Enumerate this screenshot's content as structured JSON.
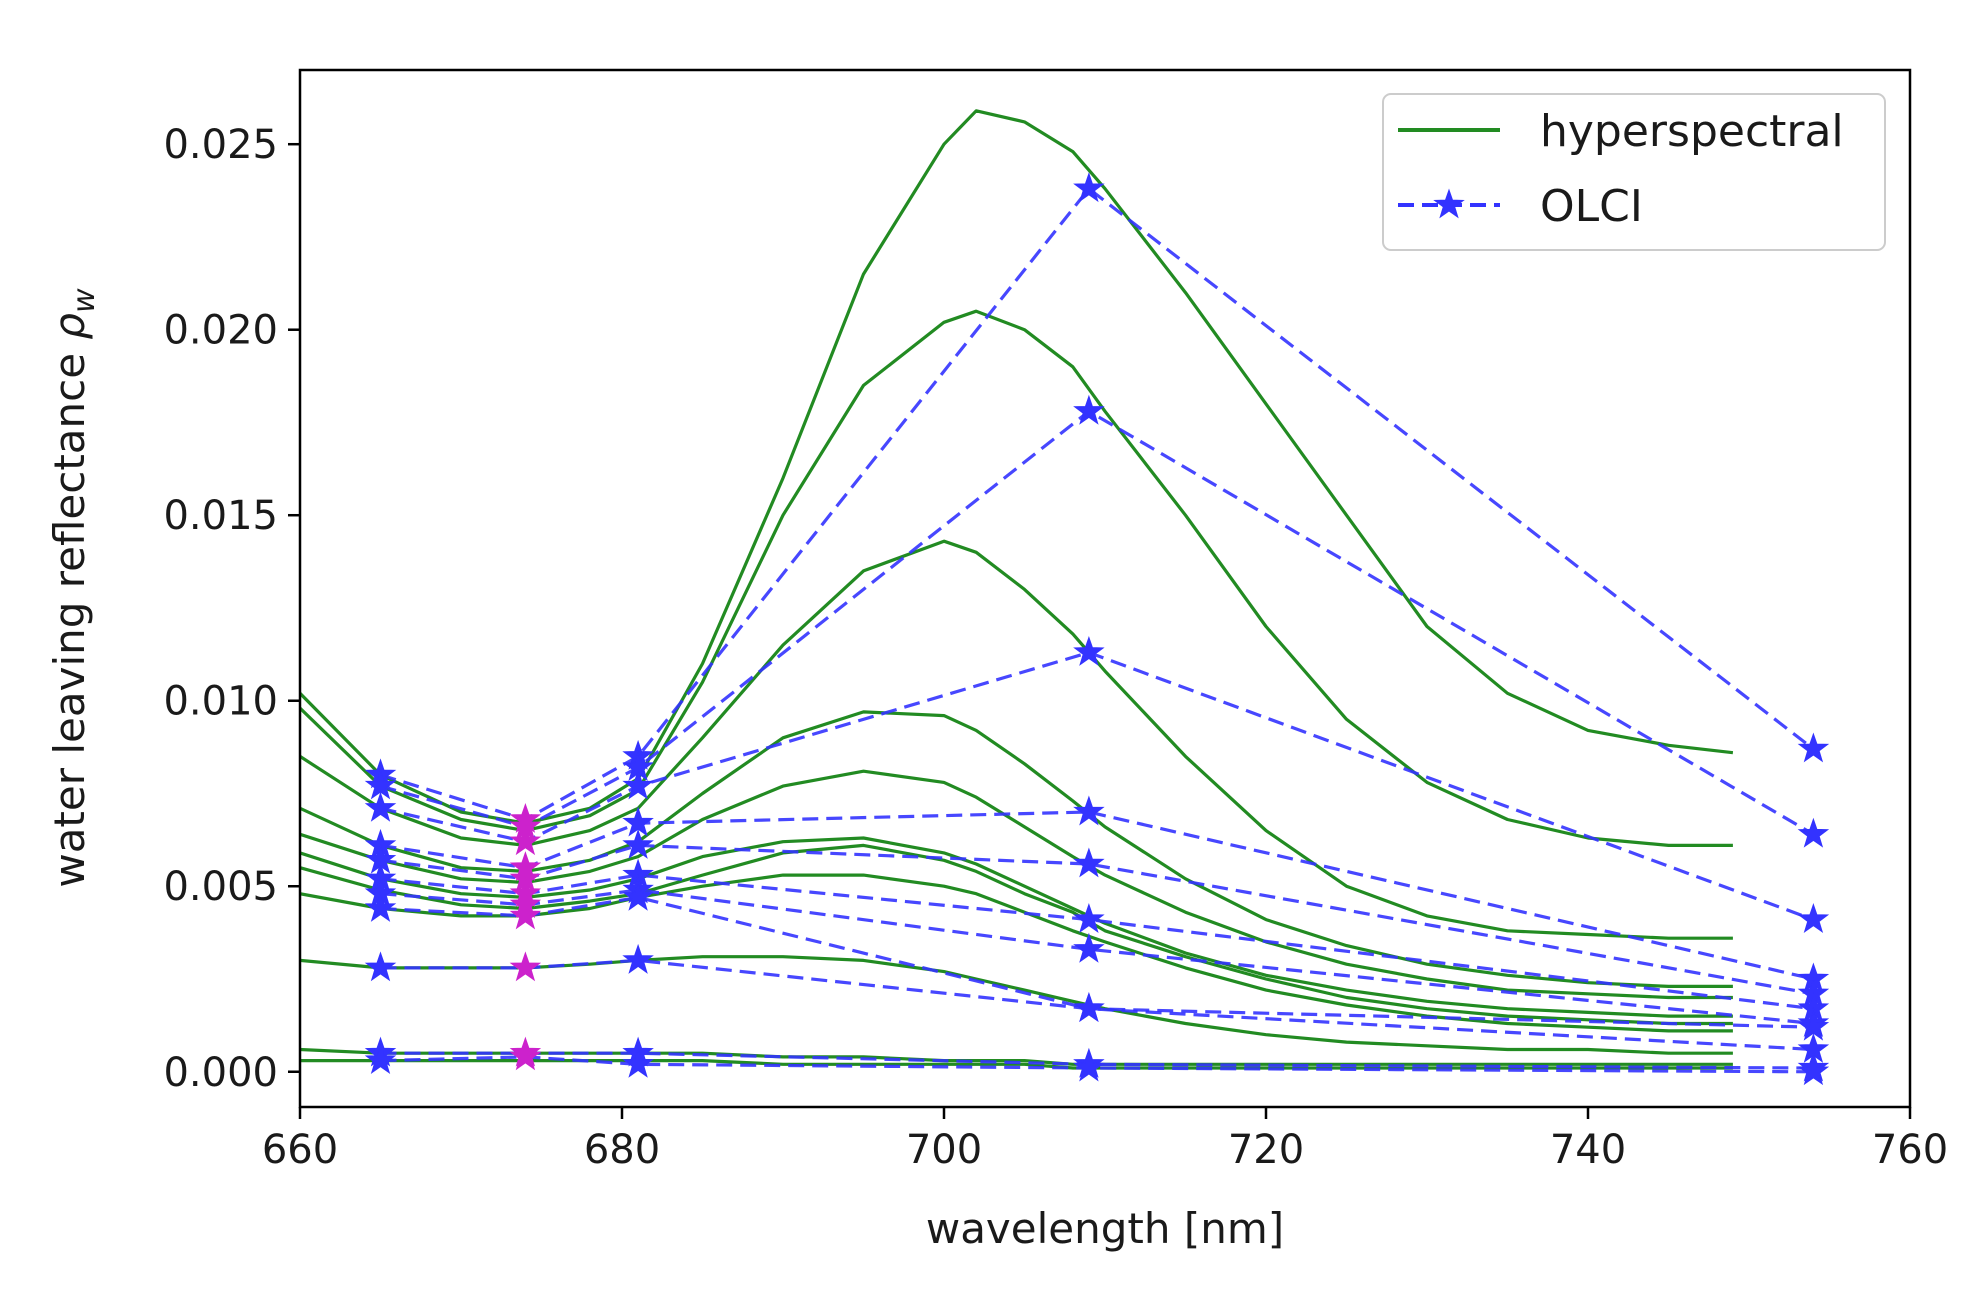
{
  "chart_data": {
    "type": "line",
    "title": "",
    "xlabel": "wavelength [nm]",
    "ylabel_text": "water leaving reflectance ",
    "ylabel_symbol": "ρ",
    "ylabel_subscript": "w",
    "xlim": [
      660,
      760
    ],
    "ylim": [
      -0.00095,
      0.027
    ],
    "x_ticks": [
      660,
      680,
      700,
      720,
      740,
      760
    ],
    "x_tick_labels": [
      "660",
      "680",
      "700",
      "720",
      "740",
      "760"
    ],
    "y_ticks": [
      0.0,
      0.005,
      0.01,
      0.015,
      0.02,
      0.025
    ],
    "y_tick_labels": [
      "0.000",
      "0.005",
      "0.010",
      "0.015",
      "0.020",
      "0.025"
    ],
    "grid": false,
    "legend": {
      "position": "top-right",
      "entries": [
        {
          "label": "hyperspectral",
          "style": "solid",
          "color": "#228B22"
        },
        {
          "label": "OLCI",
          "style": "dashed-star",
          "color": "#3333ff"
        }
      ]
    },
    "colors": {
      "hyperspectral": "#228B22",
      "olci": "#3333ff",
      "highlight": "#cc22cc"
    },
    "olci_bands": [
      665,
      674,
      681,
      709,
      754
    ],
    "highlight_band": 674,
    "hyperspectral_x": [
      660,
      665,
      670,
      674,
      678,
      681,
      685,
      690,
      695,
      700,
      702,
      705,
      708,
      710,
      715,
      720,
      725,
      730,
      735,
      740,
      745,
      749
    ],
    "hyperspectral_series": [
      {
        "name": "spectrum 1",
        "values": [
          0.0102,
          0.008,
          0.007,
          0.0067,
          0.0071,
          0.0079,
          0.011,
          0.016,
          0.0215,
          0.025,
          0.0259,
          0.0256,
          0.0248,
          0.0238,
          0.021,
          0.018,
          0.015,
          0.012,
          0.0102,
          0.0092,
          0.0088,
          0.0086
        ]
      },
      {
        "name": "spectrum 2",
        "values": [
          0.0098,
          0.0077,
          0.0068,
          0.0065,
          0.0069,
          0.0076,
          0.0105,
          0.015,
          0.0185,
          0.0202,
          0.0205,
          0.02,
          0.019,
          0.0178,
          0.015,
          0.012,
          0.0095,
          0.0078,
          0.0068,
          0.0063,
          0.0061,
          0.0061
        ]
      },
      {
        "name": "spectrum 3",
        "values": [
          0.0085,
          0.0071,
          0.0063,
          0.0061,
          0.0065,
          0.0071,
          0.009,
          0.0115,
          0.0135,
          0.0143,
          0.014,
          0.013,
          0.0118,
          0.0108,
          0.0085,
          0.0065,
          0.005,
          0.0042,
          0.0038,
          0.0037,
          0.0036,
          0.0036
        ]
      },
      {
        "name": "spectrum 4",
        "values": [
          0.0071,
          0.0061,
          0.0055,
          0.0054,
          0.0057,
          0.0062,
          0.0075,
          0.009,
          0.0097,
          0.0096,
          0.0092,
          0.0083,
          0.0073,
          0.0066,
          0.0052,
          0.0041,
          0.0034,
          0.0029,
          0.0026,
          0.0024,
          0.0023,
          0.0023
        ]
      },
      {
        "name": "spectrum 5",
        "values": [
          0.0064,
          0.0057,
          0.0052,
          0.0051,
          0.0054,
          0.0058,
          0.0068,
          0.0077,
          0.0081,
          0.0078,
          0.0074,
          0.0066,
          0.0058,
          0.0053,
          0.0043,
          0.0035,
          0.0029,
          0.0025,
          0.0022,
          0.0021,
          0.002,
          0.002
        ]
      },
      {
        "name": "spectrum 6",
        "values": [
          0.0059,
          0.0052,
          0.0048,
          0.0047,
          0.0049,
          0.0052,
          0.0058,
          0.0062,
          0.0063,
          0.0059,
          0.0056,
          0.005,
          0.0044,
          0.004,
          0.0032,
          0.0026,
          0.0022,
          0.0019,
          0.0017,
          0.0016,
          0.0015,
          0.0015
        ]
      },
      {
        "name": "spectrum 7",
        "values": [
          0.0055,
          0.0049,
          0.0045,
          0.0044,
          0.0046,
          0.0048,
          0.0053,
          0.0059,
          0.0061,
          0.0057,
          0.0054,
          0.0048,
          0.0043,
          0.0038,
          0.0031,
          0.0025,
          0.002,
          0.0017,
          0.0015,
          0.0014,
          0.0013,
          0.0013
        ]
      },
      {
        "name": "spectrum 8",
        "values": [
          0.0048,
          0.0044,
          0.0042,
          0.0042,
          0.0044,
          0.0047,
          0.005,
          0.0053,
          0.0053,
          0.005,
          0.0048,
          0.0043,
          0.0038,
          0.0035,
          0.0028,
          0.0022,
          0.0018,
          0.0015,
          0.0013,
          0.0012,
          0.0011,
          0.0011
        ]
      },
      {
        "name": "spectrum 9",
        "values": [
          0.003,
          0.0028,
          0.0028,
          0.0028,
          0.0029,
          0.003,
          0.0031,
          0.0031,
          0.003,
          0.0027,
          0.0025,
          0.0022,
          0.0019,
          0.0017,
          0.0013,
          0.001,
          0.0008,
          0.0007,
          0.0006,
          0.0006,
          0.0005,
          0.0005
        ]
      },
      {
        "name": "spectrum 10",
        "values": [
          0.0006,
          0.0005,
          0.0005,
          0.0005,
          0.0005,
          0.0005,
          0.0005,
          0.0004,
          0.0004,
          0.0003,
          0.0003,
          0.0003,
          0.0002,
          0.0002,
          0.0002,
          0.0002,
          0.0002,
          0.0002,
          0.0002,
          0.0002,
          0.0002,
          0.0002
        ]
      },
      {
        "name": "spectrum 11",
        "values": [
          0.0003,
          0.0003,
          0.0003,
          0.0003,
          0.0003,
          0.0003,
          0.0003,
          0.0002,
          0.0002,
          0.0002,
          0.0002,
          0.0002,
          0.0001,
          0.0001,
          0.0001,
          0.0001,
          0.0001,
          0.0001,
          0.0001,
          0.0001,
          0.0001,
          0.0001
        ]
      }
    ],
    "olci_series": [
      {
        "name": "OLCI 1",
        "values": [
          0.008,
          0.0068,
          0.0085,
          0.0238,
          0.0087
        ]
      },
      {
        "name": "OLCI 2",
        "values": [
          0.0077,
          0.0066,
          0.0082,
          0.0178,
          0.0064
        ]
      },
      {
        "name": "OLCI 3",
        "values": [
          0.0071,
          0.0062,
          0.0077,
          0.0113,
          0.0041
        ]
      },
      {
        "name": "OLCI 4",
        "values": [
          0.0061,
          0.0055,
          0.0067,
          0.007,
          0.0025
        ]
      },
      {
        "name": "OLCI 5",
        "values": [
          0.0057,
          0.0052,
          0.0061,
          0.0056,
          0.0021
        ]
      },
      {
        "name": "OLCI 6",
        "values": [
          0.0052,
          0.0048,
          0.0053,
          0.0041,
          0.0017
        ]
      },
      {
        "name": "OLCI 7",
        "values": [
          0.0048,
          0.0045,
          0.0049,
          0.0033,
          0.0013
        ]
      },
      {
        "name": "OLCI 8",
        "values": [
          0.0044,
          0.0042,
          0.0047,
          0.0017,
          0.0012
        ]
      },
      {
        "name": "OLCI 9",
        "values": [
          0.0028,
          0.0028,
          0.003,
          0.0017,
          0.0006
        ]
      },
      {
        "name": "OLCI 10",
        "values": [
          0.0005,
          0.0005,
          0.0005,
          0.0002,
          0.0001
        ]
      },
      {
        "name": "OLCI 11",
        "values": [
          0.0003,
          0.0004,
          0.0002,
          0.0001,
          0.0
        ]
      }
    ]
  }
}
